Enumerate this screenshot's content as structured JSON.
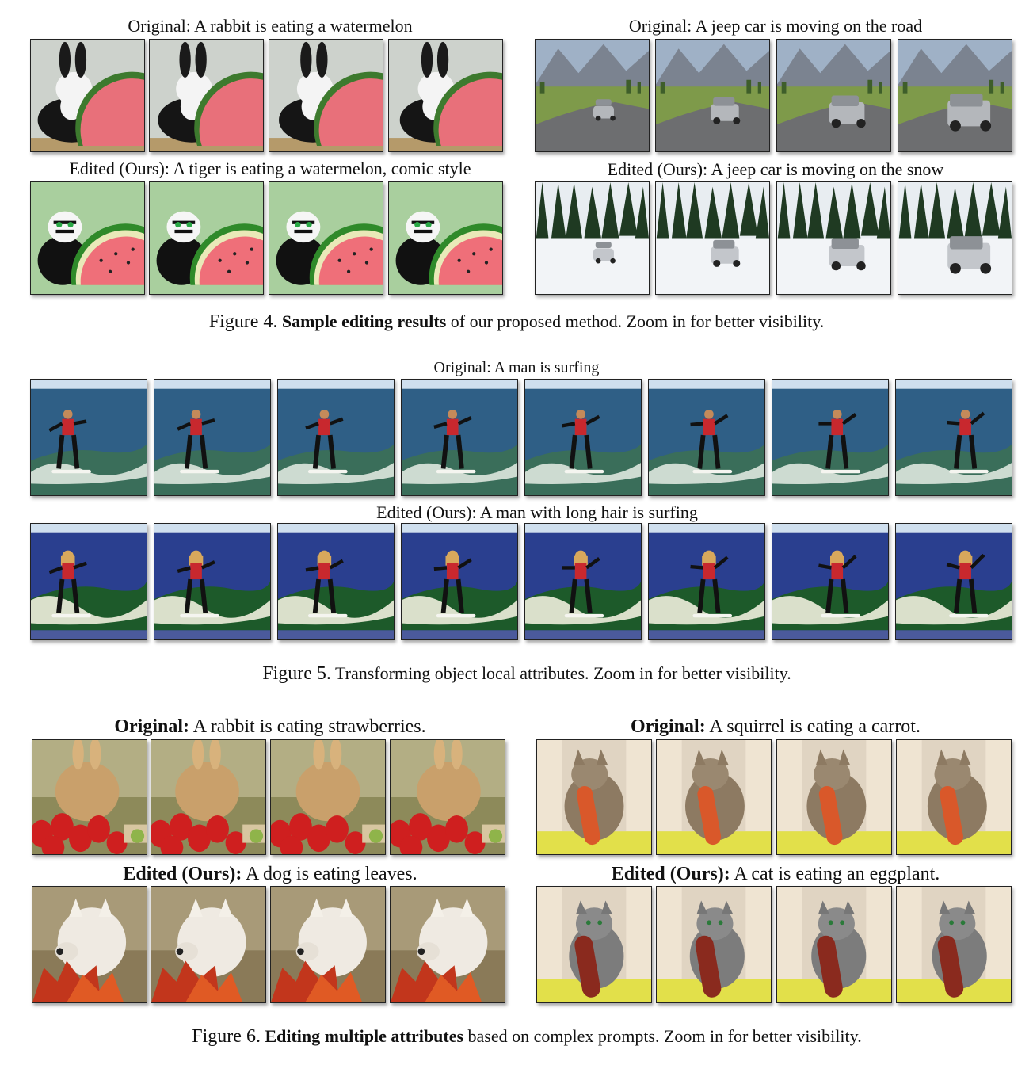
{
  "figure4": {
    "left_panel": {
      "original_label": "Original: A rabbit is eating a watermelon",
      "edited_label": "Edited (Ours): A tiger is eating a watermelon, comic style"
    },
    "right_panel": {
      "original_label": "Original: A jeep car is moving on the road",
      "edited_label": "Edited (Ours): A jeep car is moving on the snow"
    },
    "caption_prefix": "Figure 4.",
    "caption_bold": "Sample editing results",
    "caption_rest": " of our proposed method. Zoom in for better visibility."
  },
  "figure5": {
    "original_label": "Original: A man is surfing",
    "edited_label": "Edited (Ours): A  man with long hair is surfing",
    "caption_prefix": "Figure 5.",
    "caption_rest": " Transforming object local attributes. Zoom in for better visibility."
  },
  "figure6": {
    "left_panel": {
      "original_bold": "Original:",
      "original_rest": " A rabbit is eating strawberries.",
      "edited_bold": "Edited (Ours):",
      "edited_rest": " A dog is eating leaves."
    },
    "right_panel": {
      "original_bold": "Original:",
      "original_rest": " A squirrel is eating a carrot.",
      "edited_bold": "Edited (Ours):",
      "edited_rest": " A cat is eating an eggplant."
    },
    "caption_prefix": "Figure 6.",
    "caption_bold": "Editing multiple attributes",
    "caption_rest": " based on complex prompts. Zoom in for better visibility."
  }
}
